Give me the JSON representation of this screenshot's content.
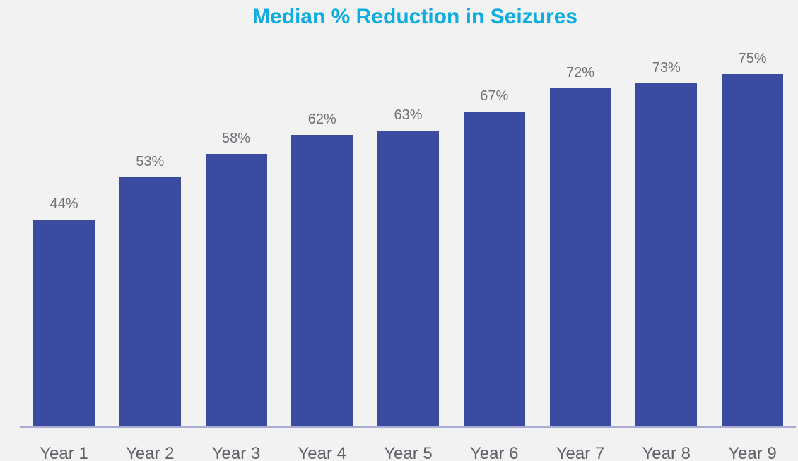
{
  "chart_data": {
    "type": "bar",
    "title": "Median % Reduction in Seizures",
    "categories": [
      "Year 1",
      "Year 2",
      "Year 3",
      "Year 4",
      "Year 5",
      "Year 6",
      "Year 7",
      "Year 8",
      "Year 9"
    ],
    "values": [
      44,
      53,
      58,
      62,
      63,
      67,
      72,
      73,
      75
    ],
    "value_labels": [
      "44%",
      "53%",
      "58%",
      "62%",
      "63%",
      "67%",
      "72%",
      "73%",
      "75%"
    ],
    "xlabel": "",
    "ylabel": "",
    "ylim": [
      0,
      80
    ],
    "grid": false,
    "legend": false
  },
  "colors": {
    "background": "#F2F2F2",
    "bar_fill": "#3A4BA0",
    "title": "#0DADE2",
    "value_label": "#6E7277",
    "axis_label": "#5E6268",
    "axis_line": "#A9ACD4"
  }
}
